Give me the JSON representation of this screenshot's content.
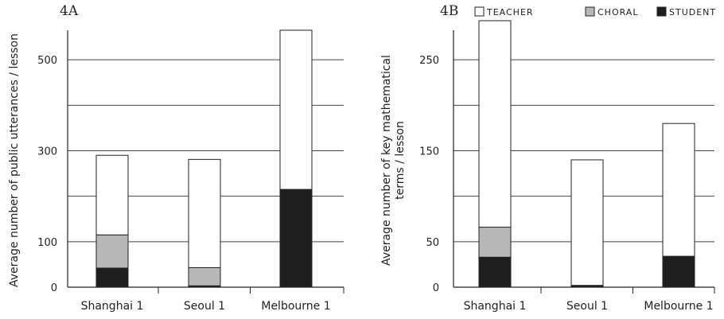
{
  "legend": [
    {
      "label": "TEACHER",
      "color": "#ffffff"
    },
    {
      "label": "CHORAL",
      "color": "#b8b8b8"
    },
    {
      "label": "STUDENT",
      "color": "#1e1e1e"
    }
  ],
  "chart_data": [
    {
      "type": "bar",
      "stacked": true,
      "panel_label": "4A",
      "ylabel": "Average number of public utterances / lesson",
      "categories": [
        "Shanghai 1",
        "Seoul 1",
        "Melbourne 1"
      ],
      "ylim": [
        0,
        600
      ],
      "yticks": [
        0,
        100,
        300,
        500
      ],
      "grid": true,
      "series": [
        {
          "name": "STUDENT",
          "values": [
            42,
            3,
            215
          ]
        },
        {
          "name": "CHORAL",
          "values": [
            73,
            40,
            0
          ]
        },
        {
          "name": "TEACHER",
          "values": [
            175,
            238,
            350
          ]
        }
      ]
    },
    {
      "type": "bar",
      "stacked": true,
      "panel_label": "4B",
      "ylabel": "Average number of key mathematical terms / lesson",
      "categories": [
        "Shanghai 1",
        "Seoul 1",
        "Melbourne 1"
      ],
      "ylim": [
        0,
        300
      ],
      "yticks": [
        0,
        50,
        150,
        250
      ],
      "grid": true,
      "series": [
        {
          "name": "STUDENT",
          "values": [
            33,
            2,
            34
          ]
        },
        {
          "name": "CHORAL",
          "values": [
            33,
            0,
            0
          ]
        },
        {
          "name": "TEACHER",
          "values": [
            227,
            138,
            146
          ]
        }
      ]
    }
  ]
}
